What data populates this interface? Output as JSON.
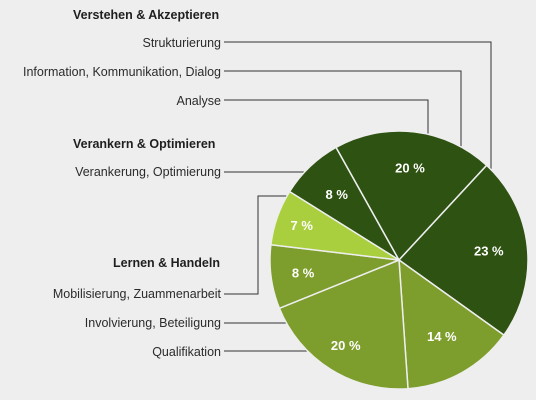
{
  "chart_data": {
    "type": "pie",
    "unit": "%",
    "groups": [
      {
        "title": "Verstehen & Akzeptieren",
        "categories": [
          "Strukturierung",
          "Information, Kommunikation, Dialog",
          "Analyse"
        ]
      },
      {
        "title": "Verankern & Optimieren",
        "categories": [
          "Verankerung, Optimierung"
        ]
      },
      {
        "title": "Lernen & Handeln",
        "categories": [
          "Mobilisierung, Zuammenarbeit",
          "Involvierung, Beteiligung",
          "Qualifikation"
        ]
      }
    ],
    "slices": [
      {
        "category": "Analyse",
        "value": 8,
        "label": "8 %",
        "color": "#2e5212"
      },
      {
        "category": "Strukturierung",
        "value": 20,
        "label": "20 %",
        "color": "#2e5212"
      },
      {
        "category": "Information, Kommunikation, Dialog",
        "value": 23,
        "label": "23 %",
        "color": "#2e5212"
      },
      {
        "category": "Qualifikation",
        "value": 14,
        "label": "14 %",
        "color": "#7d9d2c"
      },
      {
        "category": "Involvierung, Beteiligung",
        "value": 20,
        "label": "20 %",
        "color": "#7d9d2c"
      },
      {
        "category": "Mobilisierung, Zuammenarbeit",
        "value": 8,
        "label": "8 %",
        "color": "#7d9d2c"
      },
      {
        "category": "Verankerung, Optimierung",
        "value": 7,
        "label": "7 %",
        "color": "#a9cf3e"
      }
    ]
  }
}
